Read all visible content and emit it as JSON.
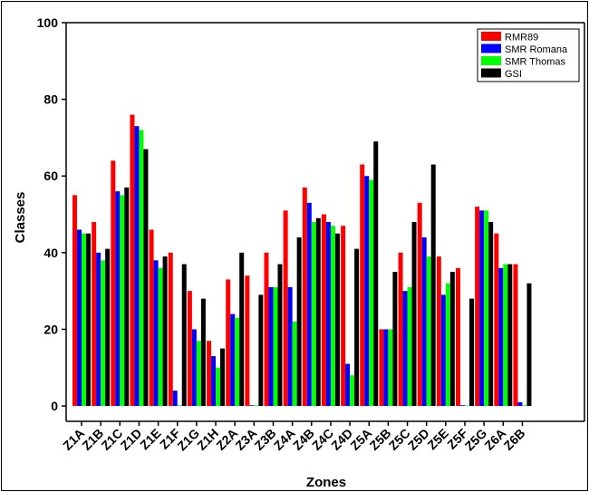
{
  "chart_data": {
    "type": "bar",
    "xlabel": "Zones",
    "ylabel": "Classes",
    "ylim": [
      -4,
      100
    ],
    "yticks": [
      0,
      20,
      40,
      60,
      80,
      100
    ],
    "grid": false,
    "legend_position": "top-right",
    "categories": [
      "Z1A",
      "Z1B",
      "Z1C",
      "Z1D",
      "Z1E",
      "Z1F",
      "Z1G",
      "Z1H",
      "Z2A",
      "Z3A",
      "Z3B",
      "Z4A",
      "Z4B",
      "Z4C",
      "Z4D",
      "Z5A",
      "Z5B",
      "Z5C",
      "Z5D",
      "Z5E",
      "Z5F",
      "Z5G",
      "Z6A",
      "Z6B"
    ],
    "series": [
      {
        "name": "RMR89",
        "color": "#ff0000",
        "values": [
          55,
          48,
          64,
          76,
          46,
          40,
          30,
          17,
          33,
          34,
          40,
          51,
          57,
          50,
          47,
          63,
          20,
          40,
          53,
          39,
          36,
          52,
          45,
          37
        ]
      },
      {
        "name": "SMR Romana",
        "color": "#0000ff",
        "values": [
          46,
          40,
          56,
          73,
          38,
          4,
          20,
          13,
          24,
          0,
          31,
          31,
          53,
          48,
          11,
          60,
          20,
          30,
          44,
          29,
          0,
          51,
          36,
          1
        ]
      },
      {
        "name": "SMR Thomas",
        "color": "#00ff00",
        "values": [
          45,
          38,
          55,
          72,
          36,
          0,
          17,
          10,
          23,
          0,
          31,
          22,
          48,
          47,
          8,
          59,
          20,
          31,
          39,
          32,
          0,
          51,
          37,
          0
        ]
      },
      {
        "name": "GSI",
        "color": "#000000",
        "values": [
          45,
          41,
          57,
          67,
          39,
          37,
          28,
          15,
          40,
          29,
          37,
          44,
          49,
          45,
          41,
          69,
          35,
          48,
          63,
          35,
          28,
          48,
          37,
          32
        ]
      }
    ]
  }
}
